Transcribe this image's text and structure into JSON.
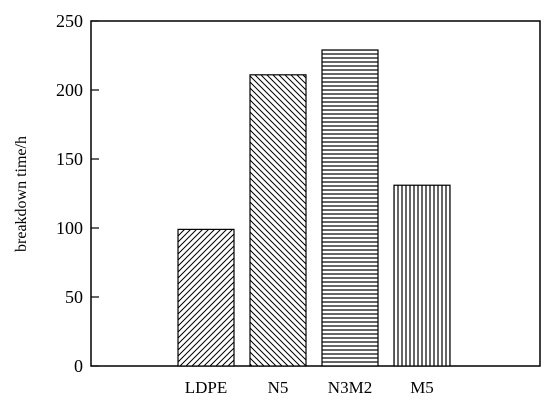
{
  "chart_data": {
    "type": "bar",
    "title": "",
    "xlabel": "",
    "ylabel": "breakdown time/h",
    "categories": [
      "LDPE",
      "N5",
      "N3M2",
      "M5"
    ],
    "values": [
      99,
      211,
      229,
      131
    ],
    "patterns": [
      "diag-up-fine",
      "diag-down",
      "horizontal",
      "vertical"
    ],
    "ylim": [
      0,
      250
    ],
    "yticks": [
      0,
      50,
      100,
      150,
      200,
      250
    ],
    "grid": false,
    "legend": "none",
    "bar_fill": "#ffffff",
    "bar_stroke": "#000000",
    "axis_color": "#000000"
  }
}
